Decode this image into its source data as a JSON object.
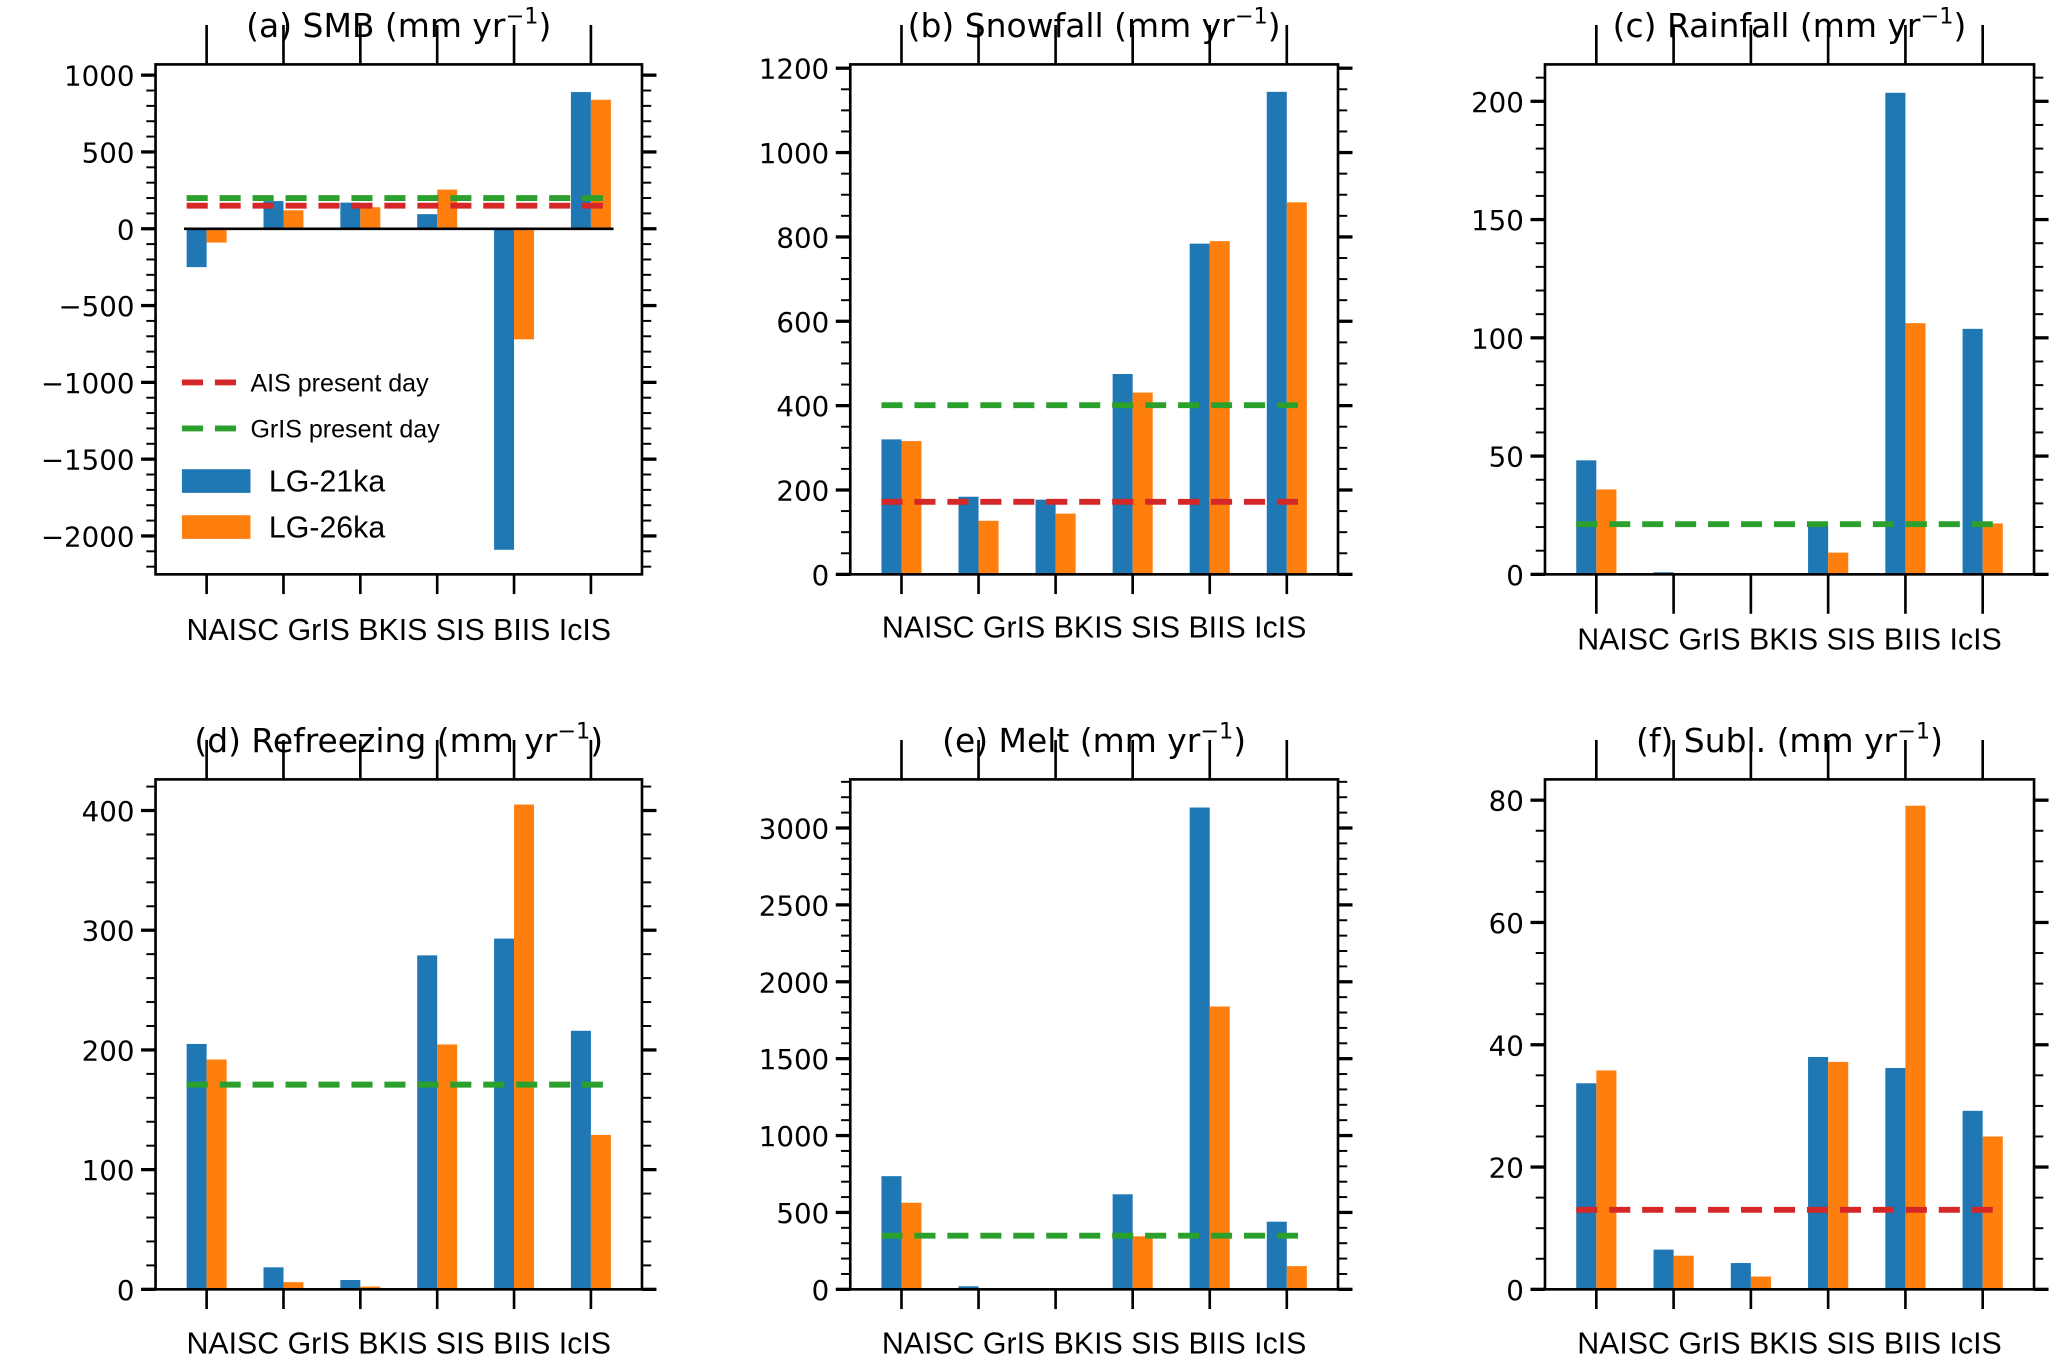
{
  "figure": {
    "series_colors": {
      "LG-21ka": "#1f77b4",
      "LG-26ka": "#ff7f0e"
    },
    "reference_colors": {
      "AIS present day": "#d62728",
      "GrIS present day": "#2ca02c"
    }
  },
  "chart_data": [
    {
      "id": "a",
      "type": "bar",
      "title": "(a) SMB (mm yr",
      "title_sup": "−1",
      "title_close": ")",
      "categories": [
        "NAISC",
        "GrIS",
        "BKIS",
        "SIS",
        "BIIS",
        "IcIS"
      ],
      "series": [
        {
          "name": "LG-21ka",
          "values": [
            -250,
            180,
            170,
            95,
            -2090,
            890
          ]
        },
        {
          "name": "LG-26ka",
          "values": [
            -90,
            120,
            140,
            255,
            -720,
            840
          ]
        }
      ],
      "reference_lines": [
        {
          "name": "AIS present day",
          "value": 150
        },
        {
          "name": "GrIS present day",
          "value": 200
        }
      ],
      "ylim": [
        -2250,
        1070
      ],
      "yticks": [
        1000,
        500,
        0,
        -500,
        -1000,
        -1500,
        -2000
      ],
      "ytick_labels": [
        "1000",
        "500",
        "0",
        "−500",
        "−1000",
        "−1500",
        "−2000"
      ],
      "minor_step": 100,
      "zero_line": true,
      "xlabel": "",
      "ylabel": "",
      "legend": {
        "placement": "lower-left",
        "entries": [
          {
            "label": "AIS present day",
            "kind": "dashed-line"
          },
          {
            "label": "GrIS present day",
            "kind": "dashed-line"
          },
          {
            "label": "LG-21ka",
            "kind": "patch"
          },
          {
            "label": "LG-26ka",
            "kind": "patch"
          }
        ]
      }
    },
    {
      "id": "b",
      "type": "bar",
      "title": "(b) Snowfall (mm yr",
      "title_sup": "−1",
      "title_close": ")",
      "categories": [
        "NAISC",
        "GrIS",
        "BKIS",
        "SIS",
        "BIIS",
        "IcIS"
      ],
      "series": [
        {
          "name": "LG-21ka",
          "values": [
            320,
            184,
            177,
            475,
            784,
            1144
          ]
        },
        {
          "name": "LG-26ka",
          "values": [
            316,
            127,
            144,
            431,
            790,
            882
          ]
        }
      ],
      "reference_lines": [
        {
          "name": "GrIS present day",
          "value": 401
        },
        {
          "name": "AIS present day",
          "value": 172
        }
      ],
      "ylim": [
        0,
        1209
      ],
      "yticks": [
        0,
        200,
        400,
        600,
        800,
        1000,
        1200
      ],
      "ytick_labels": [
        "0",
        "200",
        "400",
        "600",
        "800",
        "1000",
        "1200"
      ],
      "minor_step": 50,
      "xlabel": "",
      "ylabel": ""
    },
    {
      "id": "c",
      "type": "bar",
      "title": "(c) Rainfall (mm yr",
      "title_sup": "−1",
      "title_close": ")",
      "categories": [
        "NAISC",
        "GrIS",
        "BKIS",
        "SIS",
        "BIIS",
        "IcIS"
      ],
      "series": [
        {
          "name": "LG-21ka",
          "values": [
            48.2,
            0.9,
            0.2,
            20.9,
            203.6,
            103.8
          ]
        },
        {
          "name": "LG-26ka",
          "values": [
            35.9,
            0.5,
            0.1,
            9.2,
            106.2,
            21.5
          ]
        }
      ],
      "reference_lines": [
        {
          "name": "GrIS present day",
          "value": 21.2
        }
      ],
      "ylim": [
        0,
        215.6
      ],
      "yticks": [
        0,
        50,
        100,
        150,
        200
      ],
      "ytick_labels": [
        "0",
        "50",
        "100",
        "150",
        "200"
      ],
      "minor_step": 10,
      "xlabel": "",
      "ylabel": ""
    },
    {
      "id": "d",
      "type": "bar",
      "title": "(d) Refreezing (mm yr",
      "title_sup": "−1",
      "title_close": ")",
      "categories": [
        "NAISC",
        "GrIS",
        "BKIS",
        "SIS",
        "BIIS",
        "IcIS"
      ],
      "series": [
        {
          "name": "LG-21ka",
          "values": [
            205,
            18.4,
            7.8,
            279,
            293,
            216
          ]
        },
        {
          "name": "LG-26ka",
          "values": [
            192,
            6,
            2.3,
            204.6,
            405,
            129
          ]
        }
      ],
      "reference_lines": [
        {
          "name": "GrIS present day",
          "value": 171
        }
      ],
      "ylim": [
        0,
        426
      ],
      "yticks": [
        0,
        100,
        200,
        300,
        400
      ],
      "ytick_labels": [
        "0",
        "100",
        "200",
        "300",
        "400"
      ],
      "minor_step": 20,
      "xlabel": "",
      "ylabel": ""
    },
    {
      "id": "e",
      "type": "bar",
      "title": "(e) Melt (mm yr",
      "title_sup": "−1",
      "title_close": ")",
      "categories": [
        "NAISC",
        "GrIS",
        "BKIS",
        "SIS",
        "BIIS",
        "IcIS"
      ],
      "series": [
        {
          "name": "LG-21ka",
          "values": [
            736,
            20,
            3,
            618,
            3133,
            440
          ]
        },
        {
          "name": "LG-26ka",
          "values": [
            563,
            7,
            2,
            345,
            1839,
            151
          ]
        }
      ],
      "reference_lines": [
        {
          "name": "GrIS present day",
          "value": 349
        }
      ],
      "ylim": [
        0,
        3316
      ],
      "yticks": [
        0,
        500,
        1000,
        1500,
        2000,
        2500,
        3000
      ],
      "ytick_labels": [
        "0",
        "500",
        "1000",
        "1500",
        "2000",
        "2500",
        "3000"
      ],
      "minor_step": 100,
      "xlabel": "",
      "ylabel": ""
    },
    {
      "id": "f",
      "type": "bar",
      "title": "(f) Subl. (mm yr",
      "title_sup": "−1",
      "title_close": ")",
      "categories": [
        "NAISC",
        "GrIS",
        "BKIS",
        "SIS",
        "BIIS",
        "IcIS"
      ],
      "series": [
        {
          "name": "LG-21ka",
          "values": [
            33.7,
            6.5,
            4.3,
            38.0,
            36.2,
            29.2
          ]
        },
        {
          "name": "LG-26ka",
          "values": [
            35.8,
            5.5,
            2.1,
            37.2,
            79.1,
            25.0
          ]
        }
      ],
      "reference_lines": [
        {
          "name": "AIS present day",
          "value": 13.0
        }
      ],
      "ylim": [
        0,
        83.4
      ],
      "yticks": [
        0,
        20,
        40,
        60,
        80
      ],
      "ytick_labels": [
        "0",
        "20",
        "40",
        "60",
        "80"
      ],
      "minor_step": 5,
      "xlabel": "",
      "ylabel": ""
    }
  ]
}
